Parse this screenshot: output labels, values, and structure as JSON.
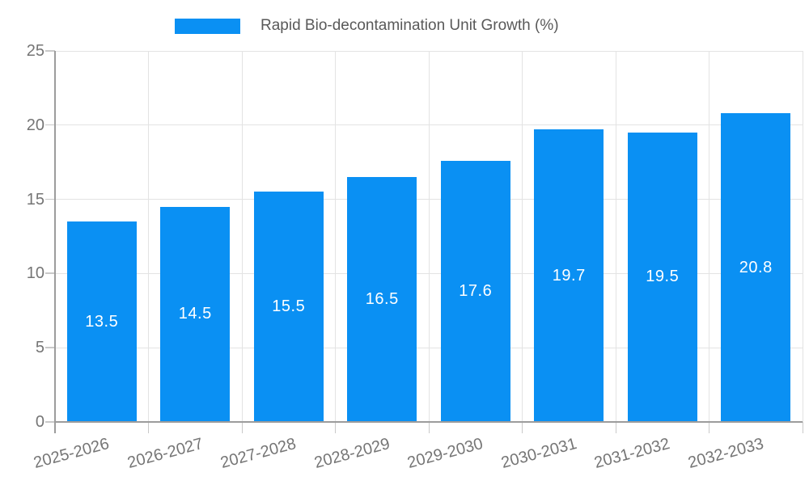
{
  "chart_data": {
    "type": "bar",
    "title": "Rapid Bio-decontamination Unit Growth (%)",
    "categories": [
      "2025-2026",
      "2026-2027",
      "2027-2028",
      "2028-2029",
      "2029-2030",
      "2030-2031",
      "2031-2032",
      "2032-2033"
    ],
    "values": [
      13.5,
      14.5,
      15.5,
      16.5,
      17.6,
      19.7,
      19.5,
      20.8
    ],
    "bar_labels": [
      "13.5",
      "14.5",
      "15.5",
      "16.5",
      "17.6",
      "19.7",
      "19.5",
      "20.8"
    ],
    "ylim": [
      0,
      25
    ],
    "yticks": [
      0,
      5,
      10,
      15,
      20,
      25
    ],
    "ytick_labels": [
      "0",
      "5",
      "10",
      "15",
      "20",
      "25"
    ],
    "grid": true,
    "legend_position": "top",
    "x_tick_rotation_deg": -15,
    "colors": {
      "bar": "#0a90f3",
      "bar_label": "#ffffff",
      "axis_line": "#9c9c9c",
      "tick_mark": "#c9c9c9",
      "gridline": "#e3e3e3",
      "tick_label": "#757575",
      "legend_text": "#595959",
      "background": "#ffffff"
    }
  }
}
